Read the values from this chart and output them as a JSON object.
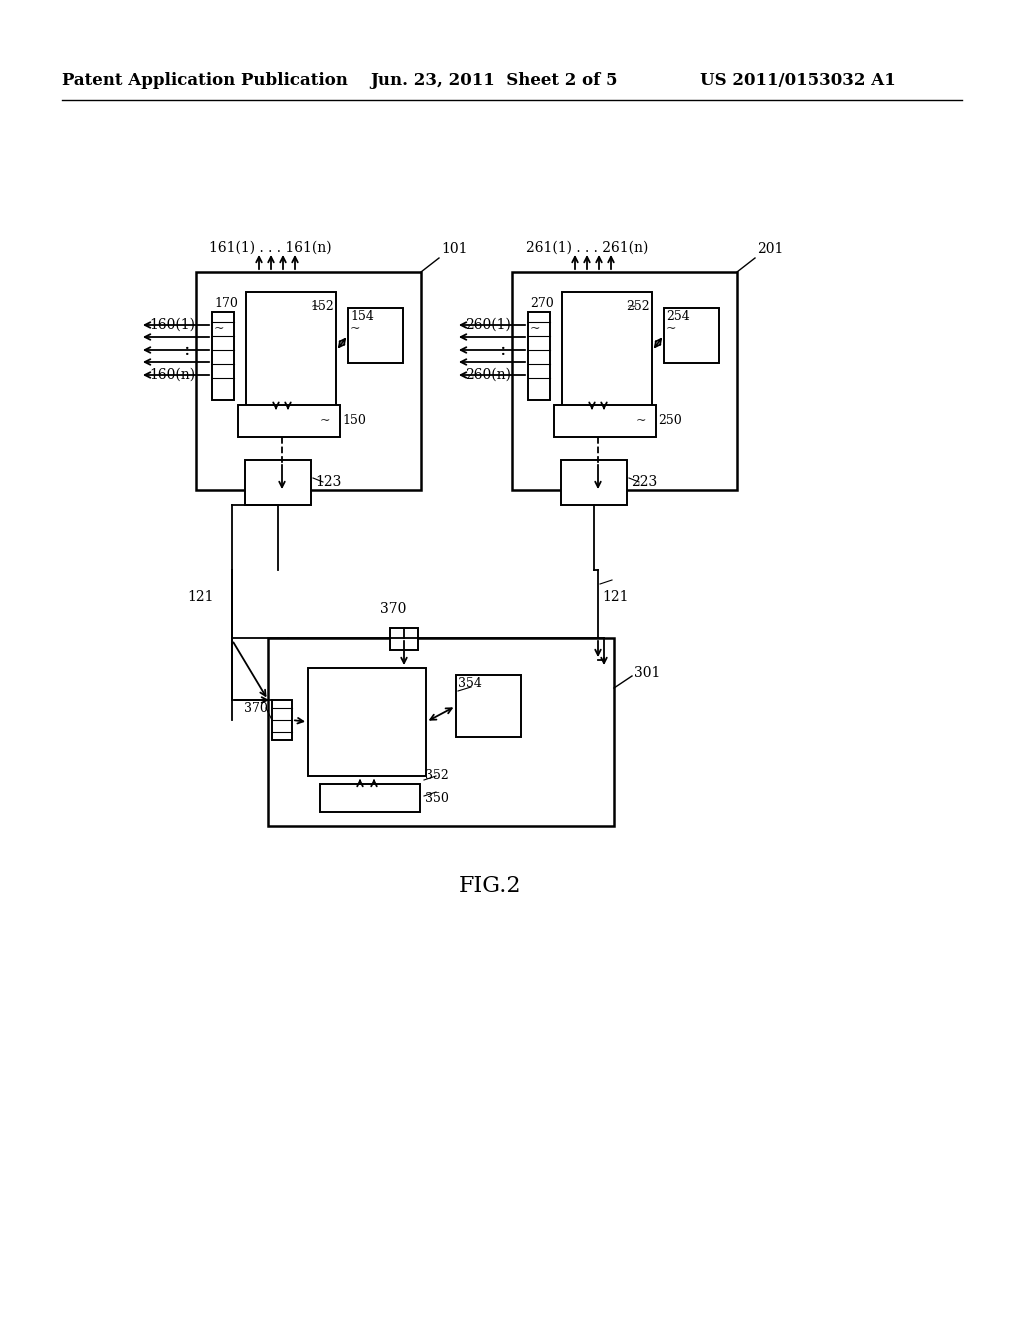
{
  "bg_color": "#ffffff",
  "header_left": "Patent Application Publication",
  "header_mid": "Jun. 23, 2011  Sheet 2 of 5",
  "header_right": "US 2011/0153032 A1",
  "fig_label": "FIG.2"
}
